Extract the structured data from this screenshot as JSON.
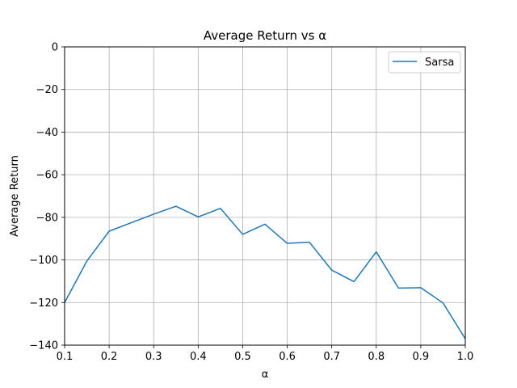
{
  "chart_data": {
    "type": "line",
    "title": "Average Return vs α",
    "xlabel": "α",
    "ylabel": "Average Return",
    "xlim": [
      0.1,
      1.0
    ],
    "ylim": [
      -140,
      0
    ],
    "xticks": [
      0.1,
      0.2,
      0.3,
      0.4,
      0.5,
      0.6,
      0.7,
      0.8,
      0.9,
      1.0
    ],
    "xtick_labels": [
      "0.1",
      "0.2",
      "0.3",
      "0.4",
      "0.5",
      "0.6",
      "0.7",
      "0.8",
      "0.9",
      "1.0"
    ],
    "yticks": [
      0,
      -20,
      -40,
      -60,
      -80,
      -100,
      -120,
      -140
    ],
    "ytick_labels": [
      "0",
      "−20",
      "−40",
      "−60",
      "−80",
      "−100",
      "−120",
      "−140"
    ],
    "grid": true,
    "legend_position": "top-right",
    "series": [
      {
        "name": "Sarsa",
        "color": "#1f77b4",
        "x": [
          0.1,
          0.15,
          0.2,
          0.25,
          0.3,
          0.35,
          0.4,
          0.45,
          0.5,
          0.55,
          0.6,
          0.65,
          0.7,
          0.75,
          0.8,
          0.85,
          0.9,
          0.95,
          1.0
        ],
        "y": [
          -120,
          -100.5,
          -86.5,
          -82.5,
          -78.5,
          -74.8,
          -79.8,
          -75.8,
          -88,
          -83.2,
          -92.2,
          -91.7,
          -104.8,
          -110.2,
          -96.2,
          -113.2,
          -113,
          -120.2,
          -137
        ]
      }
    ]
  }
}
